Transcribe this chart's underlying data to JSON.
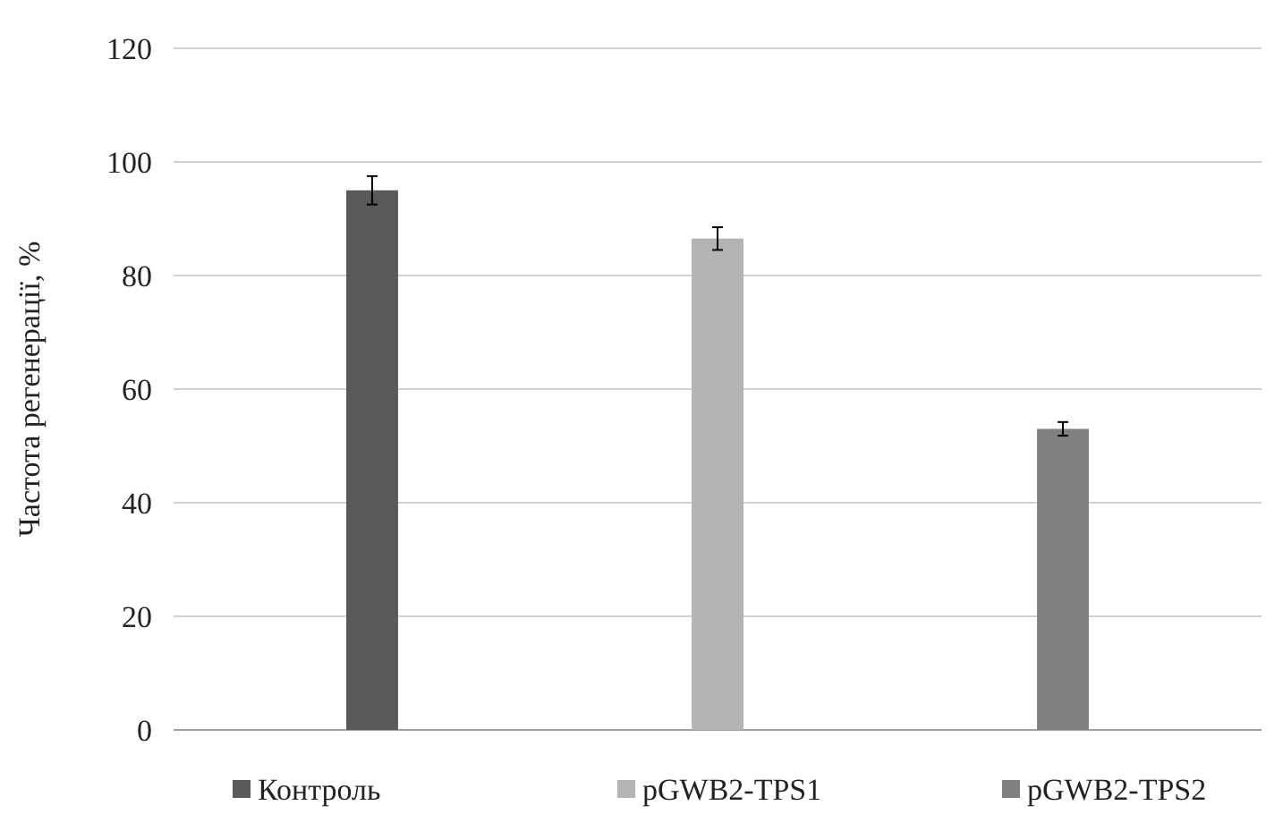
{
  "chart_data": {
    "type": "bar",
    "ylabel": "Частота регенерації, %",
    "categories": [
      null
    ],
    "series": [
      {
        "name": "Контроль",
        "color": "#595959",
        "values": [
          95
        ],
        "errors": [
          2.5
        ]
      },
      {
        "name": "pGWB2-TPS1",
        "color": "#b3b3b3",
        "values": [
          86.5
        ],
        "errors": [
          2
        ]
      },
      {
        "name": "pGWB2-TPS2",
        "color": "#808080",
        "values": [
          53
        ],
        "errors": [
          1.2
        ]
      }
    ],
    "ylim": [
      0,
      120
    ],
    "yticks": [
      0,
      20,
      40,
      60,
      80,
      100,
      120
    ],
    "grid": "y",
    "legend": "bottom",
    "tick_labels": "y"
  }
}
